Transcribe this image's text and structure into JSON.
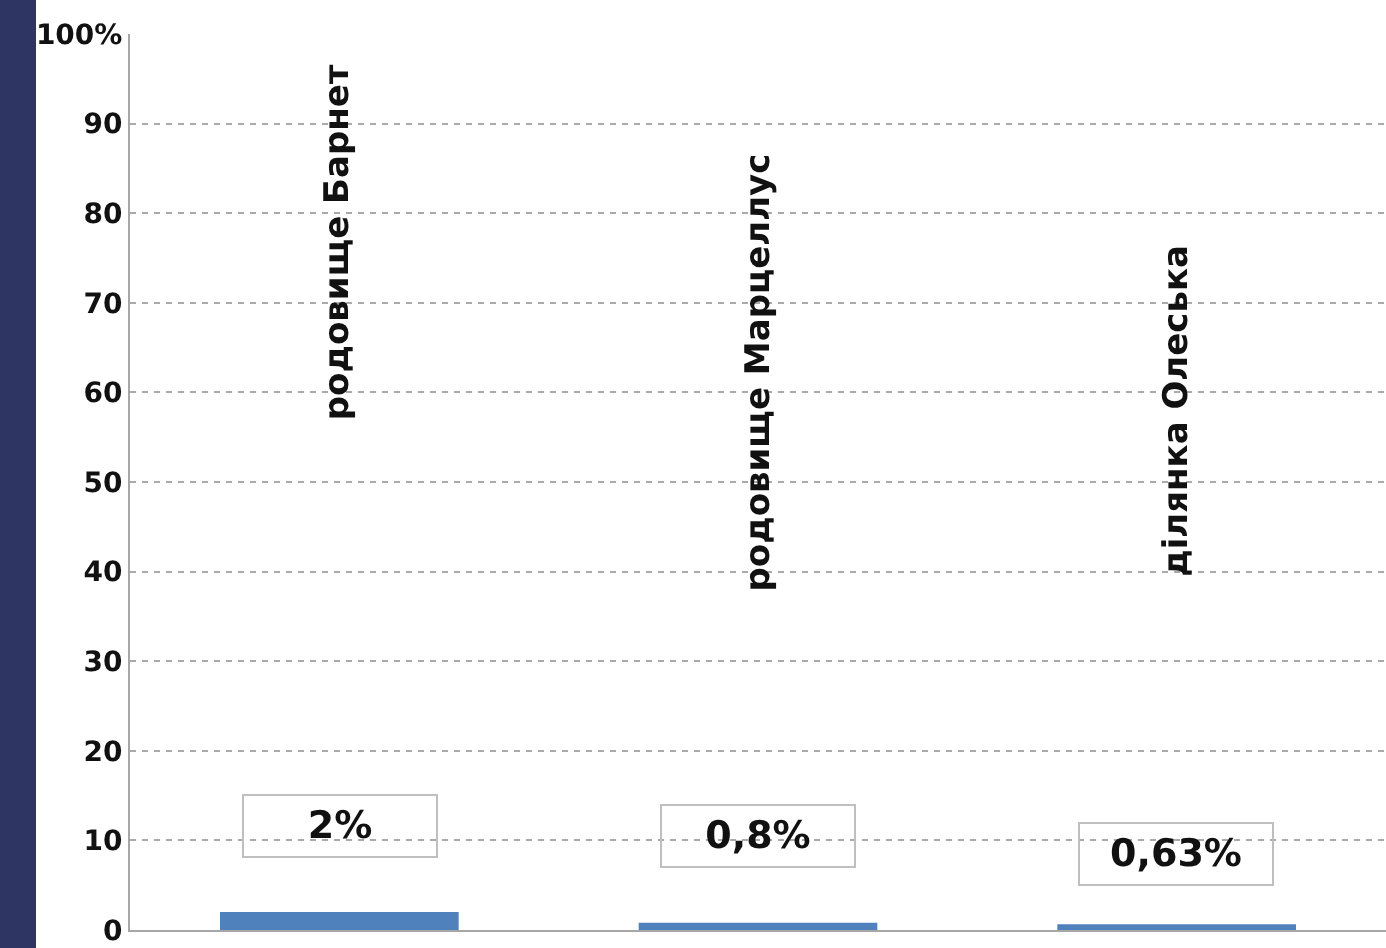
{
  "chart_data": {
    "type": "bar",
    "categories": [
      "родовище Барнет",
      "родовище Марцеллус",
      "ділянка Олеська"
    ],
    "values": [
      2,
      0.8,
      0.63
    ],
    "value_labels": [
      "2%",
      "0,8%",
      "0,63%"
    ],
    "color": "#4f81bd",
    "ylim": [
      0,
      100
    ],
    "yticks": [
      0,
      10,
      20,
      30,
      40,
      50,
      60,
      70,
      80,
      90,
      {
        "value": 100,
        "label": "100%"
      }
    ],
    "grid": "y"
  }
}
